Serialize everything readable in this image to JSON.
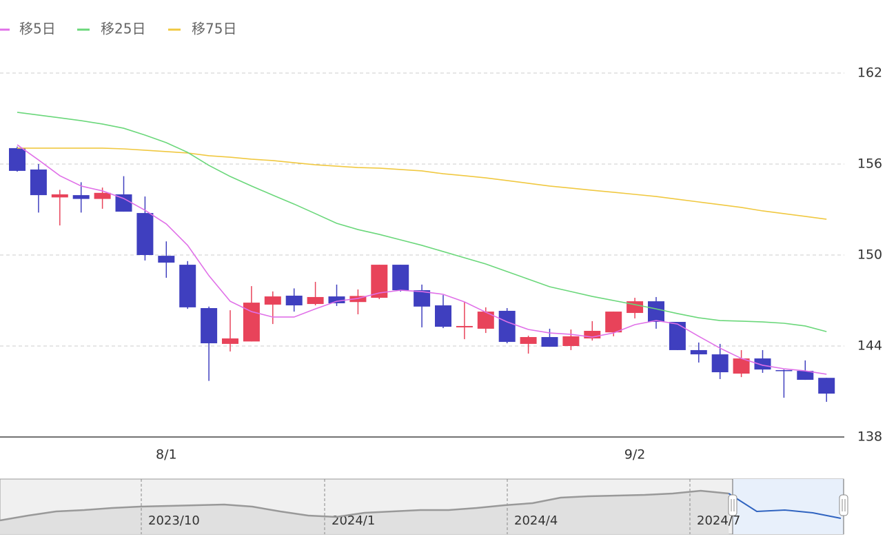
{
  "chart_data": {
    "type": "candlestick",
    "legend": [
      {
        "name": "移5日",
        "color": "#e070e8"
      },
      {
        "name": "移25日",
        "color": "#6ad77a"
      },
      {
        "name": "移75日",
        "color": "#f0c840"
      }
    ],
    "categories": [
      null,
      null,
      null,
      null,
      null,
      null,
      null,
      "8/1",
      null,
      null,
      null,
      null,
      null,
      null,
      null,
      null,
      null,
      null,
      null,
      null,
      null,
      null,
      null,
      null,
      null,
      null,
      null,
      null,
      null,
      "9/2",
      null,
      null,
      null,
      null,
      null,
      null,
      null,
      null,
      null
    ],
    "open": [
      157.05,
      155.64,
      153.8,
      153.95,
      153.7,
      154.0,
      152.77,
      149.95,
      149.36,
      146.5,
      144.14,
      144.3,
      146.73,
      147.32,
      146.77,
      147.27,
      146.9,
      147.18,
      149.36,
      147.68,
      146.68,
      145.23,
      145.14,
      146.32,
      144.14,
      144.59,
      144.0,
      144.5,
      144.9,
      146.18,
      146.95,
      145.59,
      143.73,
      143.45,
      142.18,
      143.18,
      142.41,
      142.36,
      141.9
    ],
    "high": [
      157.15,
      156.0,
      154.3,
      154.8,
      154.45,
      155.2,
      153.86,
      150.9,
      149.6,
      146.6,
      146.36,
      147.95,
      147.6,
      147.8,
      148.23,
      148.05,
      147.73,
      149.36,
      149.36,
      148.05,
      147.36,
      146.91,
      146.55,
      146.5,
      144.68,
      145.14,
      145.09,
      145.64,
      146.27,
      147.18,
      147.23,
      145.59,
      144.23,
      144.14,
      143.73,
      143.73,
      142.45,
      143.05,
      141.9
    ],
    "low": [
      155.5,
      152.8,
      151.95,
      152.8,
      153.05,
      152.86,
      149.64,
      148.5,
      146.45,
      141.7,
      143.64,
      144.3,
      145.45,
      146.27,
      146.68,
      146.64,
      146.09,
      147.09,
      147.59,
      145.23,
      145.18,
      144.45,
      144.86,
      144.18,
      143.5,
      143.95,
      143.73,
      144.36,
      144.64,
      145.82,
      145.14,
      143.73,
      142.91,
      141.82,
      141.95,
      142.23,
      140.59,
      141.77,
      140.32
    ],
    "close": [
      155.55,
      153.95,
      154.0,
      153.7,
      154.1,
      152.86,
      150.0,
      149.5,
      146.55,
      144.18,
      144.5,
      146.86,
      147.27,
      146.68,
      147.23,
      146.82,
      147.3,
      149.36,
      147.68,
      146.6,
      145.27,
      145.32,
      146.27,
      144.27,
      144.59,
      143.95,
      144.64,
      145.0,
      146.27,
      146.95,
      145.59,
      143.73,
      143.45,
      142.27,
      143.18,
      142.45,
      142.36,
      141.77,
      140.86
    ],
    "up_color": "#e8435a",
    "down_color": "#3f3fbf",
    "series": [
      {
        "name": "移5日",
        "color": "#e070e8",
        "values": [
          157.27,
          156.27,
          155.23,
          154.55,
          154.23,
          153.73,
          152.95,
          152.05,
          150.64,
          148.64,
          146.95,
          146.27,
          145.91,
          145.91,
          146.45,
          146.95,
          147.14,
          147.5,
          147.68,
          147.59,
          147.41,
          146.91,
          146.23,
          145.59,
          145.09,
          144.86,
          144.77,
          144.59,
          144.86,
          145.41,
          145.68,
          145.45,
          144.64,
          143.86,
          143.18,
          142.73,
          142.5,
          142.36,
          142.14
        ]
      },
      {
        "name": "移25日",
        "color": "#6ad77a",
        "values": [
          159.41,
          159.23,
          159.05,
          158.86,
          158.64,
          158.36,
          157.91,
          157.41,
          156.77,
          155.91,
          155.18,
          154.55,
          153.95,
          153.36,
          152.73,
          152.09,
          151.68,
          151.36,
          151.0,
          150.64,
          150.23,
          149.82,
          149.41,
          148.91,
          148.41,
          147.91,
          147.59,
          147.27,
          147.0,
          146.73,
          146.45,
          146.14,
          145.86,
          145.68,
          145.64,
          145.59,
          145.5,
          145.32,
          144.95
        ]
      },
      {
        "name": "移75日",
        "color": "#f0c840",
        "values": [
          157.05,
          157.05,
          157.05,
          157.05,
          157.05,
          157.0,
          156.91,
          156.82,
          156.73,
          156.55,
          156.45,
          156.32,
          156.23,
          156.09,
          155.95,
          155.86,
          155.77,
          155.73,
          155.64,
          155.55,
          155.36,
          155.23,
          155.09,
          154.91,
          154.73,
          154.55,
          154.41,
          154.27,
          154.14,
          154.0,
          153.86,
          153.68,
          153.5,
          153.32,
          153.14,
          152.91,
          152.73,
          152.55,
          152.36
        ]
      }
    ],
    "ylim": [
      138,
      163
    ],
    "yticks": [
      138,
      144,
      150,
      156,
      162
    ],
    "grid": true,
    "navigator": {
      "labels": [
        "2023/10",
        "2024/1",
        "2024/4",
        "2024/7"
      ],
      "values": [
        130,
        133.5,
        136.5,
        137.5,
        139,
        140,
        140.5,
        141,
        141.5,
        140,
        136.5,
        133.5,
        132.5,
        135.5,
        136.5,
        137.5,
        137.5,
        139,
        141,
        142.5,
        146.5,
        147.5,
        148,
        148.5,
        149.5,
        151.5,
        149.5,
        136.5,
        137.5,
        135.5,
        131.5
      ]
    }
  }
}
